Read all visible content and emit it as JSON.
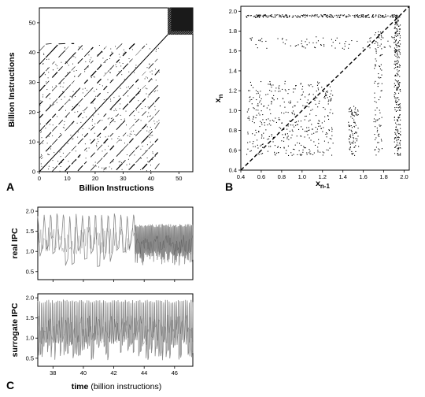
{
  "panels": {
    "a": "A",
    "b": "B",
    "c": "C"
  },
  "chart_data": [
    {
      "type": "scatter",
      "subtype": "recurrence-plot",
      "xlabel": "Billion Instructions",
      "ylabel": "Billion Instructions",
      "xlim": [
        0,
        55
      ],
      "ylim": [
        0,
        55
      ],
      "xticks": [
        0,
        10,
        20,
        30,
        40,
        50
      ],
      "yticks": [
        0,
        10,
        20,
        30,
        40,
        50
      ],
      "xtick_labels": [
        "0",
        "10",
        "20",
        "30",
        "40",
        "50"
      ],
      "ytick_labels": [
        "0",
        "10",
        "20",
        "30",
        "40",
        "50"
      ],
      "blocks": [
        {
          "from": 0,
          "to": 43,
          "pattern": "periodic recurrences, period ~4.5"
        },
        {
          "from": 46,
          "to": 55,
          "pattern": "dense recurrence block"
        }
      ],
      "diagonal": true
    },
    {
      "type": "scatter",
      "subtype": "return-map",
      "xlabel": "x",
      "xlabel_sub": "n-1",
      "ylabel": "x",
      "ylabel_sub": "n",
      "xlim": [
        0.4,
        2.05
      ],
      "ylim": [
        0.4,
        2.05
      ],
      "xticks": [
        0.4,
        0.6,
        0.8,
        1.0,
        1.2,
        1.4,
        1.6,
        1.8,
        2.0
      ],
      "yticks": [
        0.4,
        0.6,
        0.8,
        1.0,
        1.2,
        1.4,
        1.6,
        1.8,
        2.0
      ],
      "xtick_labels": [
        "0.4",
        "0.6",
        "0.8",
        "1.0",
        "1.2",
        "1.4",
        "1.6",
        "1.8",
        "2.0"
      ],
      "ytick_labels": [
        "0.4",
        "0.6",
        "0.8",
        "1.0",
        "1.2",
        "1.4",
        "1.6",
        "1.8",
        "2.0"
      ],
      "identity_line": true,
      "clusters": [
        {
          "x": [
            0.45,
            1.3
          ],
          "y": [
            0.55,
            1.3
          ],
          "density": "medium"
        },
        {
          "x": [
            0.45,
            1.95
          ],
          "y": [
            1.94,
            1.97
          ],
          "density": "high"
        },
        {
          "x": [
            0.45,
            1.95
          ],
          "y": [
            1.62,
            1.75
          ],
          "density": "low"
        },
        {
          "x": [
            1.9,
            1.96
          ],
          "y": [
            0.55,
            1.95
          ],
          "density": "high"
        },
        {
          "x": [
            1.45,
            1.55
          ],
          "y": [
            0.55,
            1.05
          ],
          "density": "low"
        },
        {
          "x": [
            1.7,
            1.78
          ],
          "y": [
            0.55,
            1.8
          ],
          "density": "low"
        }
      ]
    },
    {
      "type": "line",
      "ylabel": "real IPC",
      "xlim": [
        37,
        47.2
      ],
      "ylim": [
        0.3,
        2.1
      ],
      "xticks": [
        38,
        40,
        42,
        44,
        46
      ],
      "yticks": [
        0.5,
        1.0,
        1.5,
        2.0
      ],
      "ytick_labels": [
        "0.5",
        "1.0",
        "1.5",
        "2.0"
      ],
      "segments": [
        {
          "x": [
            37,
            43.4
          ],
          "levels": [
            0.6,
            1.95
          ],
          "period": 0.42
        },
        {
          "x": [
            43.4,
            47.2
          ],
          "levels": [
            0.65,
            1.68
          ],
          "period": 0.06
        }
      ]
    },
    {
      "type": "line",
      "ylabel": "surrogate IPC",
      "xlabel": "time",
      "xlabel_unit": "(billion instructions)",
      "xlim": [
        37,
        47.2
      ],
      "ylim": [
        0.3,
        2.1
      ],
      "xticks": [
        38,
        40,
        42,
        44,
        46
      ],
      "xtick_labels": [
        "38",
        "40",
        "42",
        "44",
        "46"
      ],
      "yticks": [
        0.5,
        1.0,
        1.5,
        2.0
      ],
      "ytick_labels": [
        "0.5",
        "1.0",
        "1.5",
        "2.0"
      ],
      "segments": [
        {
          "x": [
            37,
            47.2
          ],
          "levels": [
            0.45,
            1.95
          ],
          "period": 0.12
        }
      ]
    }
  ]
}
